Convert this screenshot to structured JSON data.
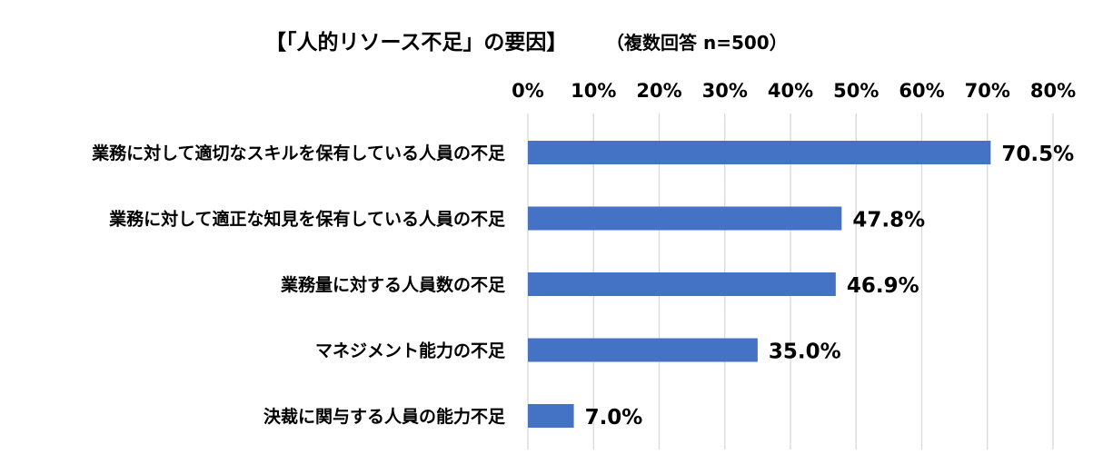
{
  "chart_data": {
    "type": "bar",
    "orientation": "horizontal",
    "title": "【「人的リソース不足」の要因】",
    "subtitle": "（複数回答 n=500）",
    "categories": [
      "業務に対して適切なスキルを保有している人員の不足",
      "業務に対して適正な知見を保有している人員の不足",
      "業務量に対する人員数の不足",
      "マネジメント能力の不足",
      "決裁に関与する人員の能力不足"
    ],
    "values": [
      70.5,
      47.8,
      46.9,
      35.0,
      7.0
    ],
    "value_labels": [
      "70.5%",
      "47.8%",
      "46.9%",
      "35.0%",
      "7.0%"
    ],
    "xlim": [
      0,
      80
    ],
    "xticks": [
      0,
      10,
      20,
      30,
      40,
      50,
      60,
      70,
      80
    ],
    "xtick_labels": [
      "0%",
      "10%",
      "20%",
      "30%",
      "40%",
      "50%",
      "60%",
      "70%",
      "80%"
    ],
    "axis_position": "top",
    "grid": true,
    "legend": false,
    "bar_color": "#4472C4",
    "grid_color": "#D9D9D9"
  }
}
